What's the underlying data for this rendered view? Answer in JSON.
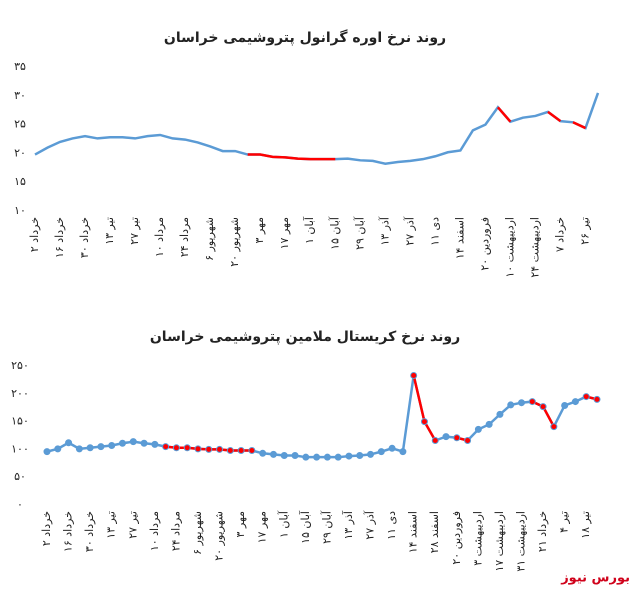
{
  "chart_data": [
    {
      "type": "line",
      "title": "روند نرخ اوره گرانول پتروشیمی خراسان",
      "categories": [
        "۲ خرداد",
        null,
        "۱۶ خرداد",
        null,
        "۳۰ خرداد",
        null,
        "۱۳ تیر",
        null,
        "۲۷ تیر",
        null,
        "۱۰ مرداد",
        null,
        "۲۴ مرداد",
        null,
        "۶ شهریور",
        null,
        "۲۰ شهریور",
        null,
        "۳ مهر",
        null,
        "۱۷ مهر",
        null,
        "۱ آبان",
        null,
        "۱۵ آبان",
        null,
        "۲۹ آبان",
        null,
        "۱۳ آذر",
        null,
        "۲۷ آذر",
        null,
        "۱۱ دی",
        null,
        "۱۴ اسفند",
        null,
        "۲۰ فروردین",
        null,
        "۱۰ اردیبهشت",
        null,
        "۲۴ اردیبهشت",
        null,
        "۷ خرداد",
        null,
        "۲۶ تیر",
        null
      ],
      "values": [
        19.8,
        21,
        22,
        22.6,
        23,
        22.6,
        22.8,
        22.8,
        22.6,
        23,
        23.2,
        22.6,
        22.4,
        21.9,
        21.2,
        20.4,
        20.4,
        19.8,
        19.8,
        19.4,
        19.3,
        19.1,
        19,
        19,
        19,
        19.1,
        18.8,
        18.7,
        18.2,
        18.5,
        18.7,
        19,
        19.5,
        20.2,
        20.5,
        24,
        25,
        28,
        25.5,
        26.2,
        26.5,
        27.2,
        25.6,
        25.4,
        24.4,
        30.5
      ],
      "color": "#5b9bd5",
      "highlight_color": "#ff0000",
      "highlight_segments": [
        [
          17,
          24
        ],
        [
          37,
          38
        ],
        [
          41,
          42
        ],
        [
          43,
          44
        ]
      ],
      "markers": false,
      "ylim": [
        10,
        35
      ],
      "yticks": [
        {
          "value": 10,
          "label": "۱۰"
        },
        {
          "value": 15,
          "label": "۱۵"
        },
        {
          "value": 20,
          "label": "۲۰"
        },
        {
          "value": 25,
          "label": "۲۵"
        },
        {
          "value": 30,
          "label": "۳۰"
        },
        {
          "value": 35,
          "label": "۳۵"
        }
      ]
    },
    {
      "type": "line",
      "title": "روند نرخ کریستال ملامین پتروشیمی خراسان",
      "categories": [
        "۲ خرداد",
        null,
        "۱۶ خرداد",
        null,
        "۳۰ خرداد",
        null,
        "۱۳ تیر",
        null,
        "۲۷ تیر",
        null,
        "۱۰ مرداد",
        null,
        "۲۴ مرداد",
        null,
        "۶ شهریور",
        null,
        "۲۰ شهریور",
        null,
        "۳ مهر",
        null,
        "۱۷ مهر",
        null,
        "۱ آبان",
        null,
        "۱۵ آبان",
        null,
        "۲۹ آبان",
        null,
        "۱۳ آذر",
        null,
        "۲۷ آذر",
        null,
        "۱۱ دی",
        null,
        "۱۴ اسفند",
        null,
        "۲۸ اسفند",
        null,
        "۲۰ فروردین",
        null,
        "۳ اردیبهشت",
        null,
        "۱۷ اردیبهشت",
        null,
        "۳۱ اردیبهشت",
        null,
        "۲۱ خرداد",
        null,
        "۴ تیر",
        null,
        "۱۸ تیر",
        null
      ],
      "values": [
        96,
        101,
        112,
        101,
        103,
        105,
        107,
        111,
        114,
        111,
        109,
        105,
        103,
        103,
        101,
        100,
        100,
        98,
        98,
        98,
        93,
        91,
        89,
        89,
        86,
        86,
        86,
        86,
        88,
        89,
        91,
        96,
        102,
        96,
        233,
        150,
        116,
        123,
        121,
        116,
        136,
        145,
        163,
        180,
        184,
        186,
        177,
        141,
        179,
        186,
        195,
        190
      ],
      "color": "#5b9bd5",
      "highlight_color": "#ff0000",
      "highlight_segments": [
        [
          11,
          19
        ],
        [
          34,
          36
        ],
        [
          38,
          39
        ],
        [
          45,
          47
        ],
        [
          50,
          51
        ]
      ],
      "markers": true,
      "ylim": [
        0,
        250
      ],
      "yticks": [
        {
          "value": 0,
          "label": "۰"
        },
        {
          "value": 50,
          "label": "۵۰"
        },
        {
          "value": 100,
          "label": "۱۰۰"
        },
        {
          "value": 150,
          "label": "۱۵۰"
        },
        {
          "value": 200,
          "label": "۲۰۰"
        },
        {
          "value": 250,
          "label": "۲۵۰"
        }
      ]
    }
  ],
  "footer": "بورس نیوز"
}
